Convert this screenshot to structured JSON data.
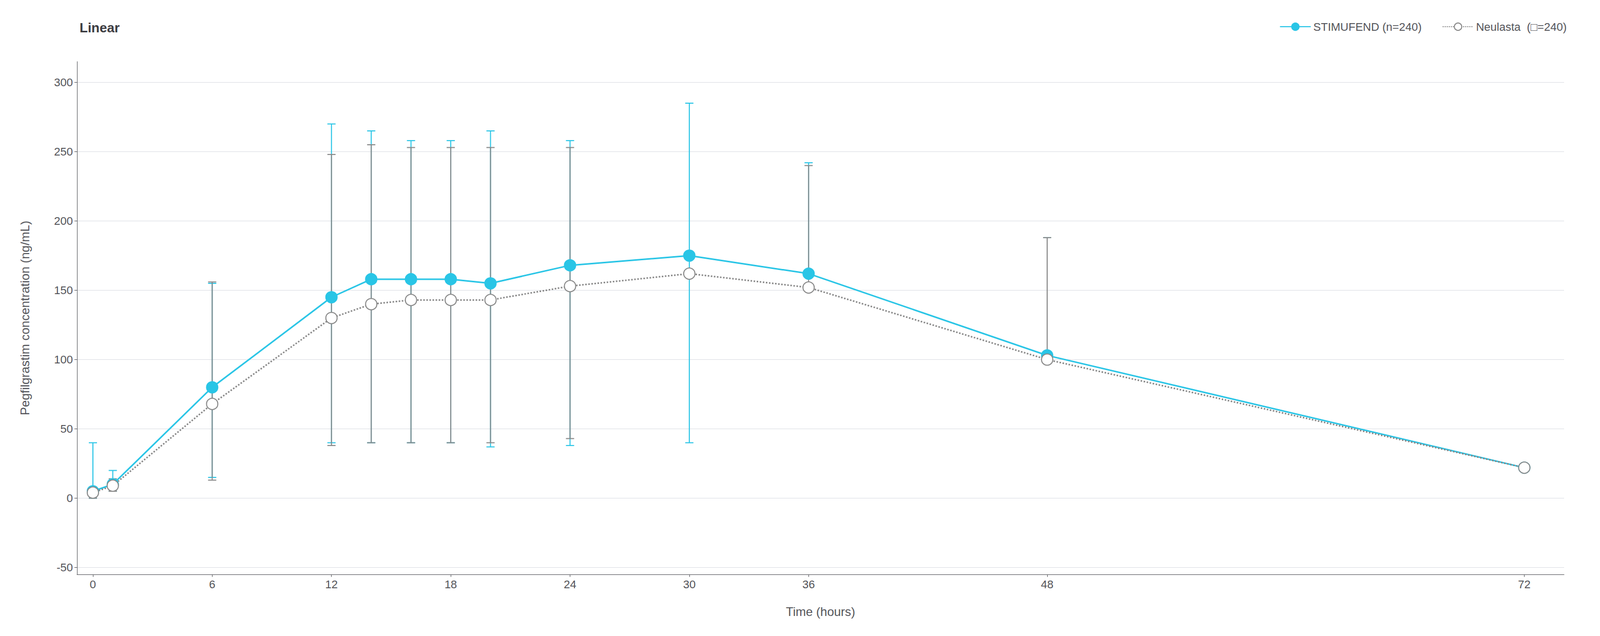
{
  "chart_data": {
    "type": "line",
    "title": "Linear",
    "xlabel": "Time (hours)",
    "ylabel": "Pegfilgrastim concentration (ng/mL)",
    "xlim": [
      -0.8,
      74
    ],
    "ylim": [
      -55,
      315
    ],
    "xticks": [
      0,
      6,
      12,
      18,
      24,
      30,
      36,
      48,
      72
    ],
    "yticks": [
      -50,
      0,
      50,
      100,
      150,
      200,
      250,
      300
    ],
    "grid": "y",
    "legend": "upper right",
    "x": [
      0,
      1,
      6,
      12,
      14,
      16,
      18,
      20,
      24,
      30,
      36,
      48,
      72
    ],
    "series": [
      {
        "name": "STIMUFEND (n=240)",
        "color": "#29c5e6",
        "marker": "circle",
        "line_style": "solid",
        "values": [
          5,
          10,
          80,
          145,
          158,
          158,
          158,
          155,
          168,
          175,
          162,
          103,
          22
        ],
        "error_low": [
          5,
          5,
          65,
          105,
          118,
          118,
          118,
          118,
          130,
          135,
          0,
          0,
          0
        ],
        "error_high": [
          35,
          10,
          75,
          125,
          107,
          100,
          100,
          110,
          90,
          110,
          80,
          85,
          0
        ]
      },
      {
        "name": "Neulasta  (□=240)",
        "color": "#888888",
        "marker": "open circle",
        "line_style": "dotted",
        "values": [
          4,
          9,
          68,
          130,
          140,
          143,
          143,
          143,
          153,
          162,
          152,
          100,
          22
        ],
        "error_low": [
          4,
          4,
          55,
          92,
          100,
          103,
          103,
          103,
          110,
          0,
          0,
          0,
          0
        ],
        "error_high": [
          4,
          5,
          88,
          118,
          115,
          110,
          110,
          110,
          100,
          0,
          88,
          88,
          0
        ]
      }
    ]
  }
}
